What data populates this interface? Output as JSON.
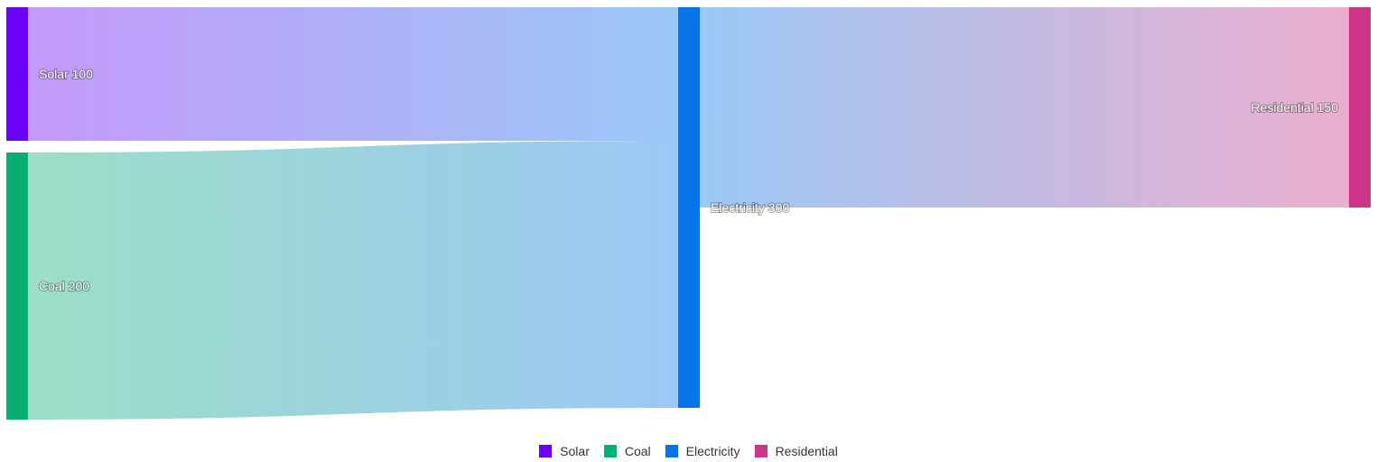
{
  "chart_data": {
    "type": "sankey",
    "nodes": [
      {
        "id": "solar",
        "name": "Solar",
        "label": "Solar 100",
        "value": 100,
        "color": "#6a00f4",
        "column": 0
      },
      {
        "id": "coal",
        "name": "Coal",
        "label": "Coal 200",
        "value": 200,
        "color": "#07ad71",
        "column": 0
      },
      {
        "id": "electricity",
        "name": "Electricity",
        "label": "Electricity 300",
        "value": 300,
        "color": "#0575e6",
        "column": 1
      },
      {
        "id": "residential",
        "name": "Residential",
        "label": "Residential 150",
        "value": 150,
        "color": "#cd3587",
        "column": 2
      }
    ],
    "links": [
      {
        "source": "solar",
        "target": "electricity",
        "value": 100
      },
      {
        "source": "coal",
        "target": "electricity",
        "value": 200
      },
      {
        "source": "electricity",
        "target": "residential",
        "value": 150
      }
    ],
    "legend": {
      "position": "bottom",
      "items": [
        "Solar",
        "Coal",
        "Electricity",
        "Residential"
      ]
    }
  }
}
